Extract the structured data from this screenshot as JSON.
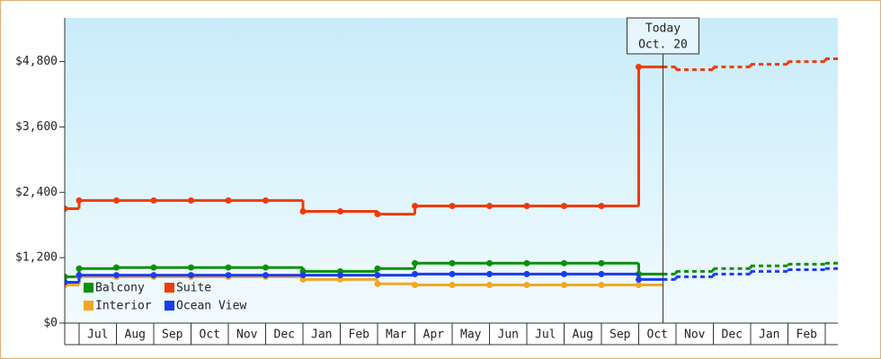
{
  "chart_data": {
    "type": "step",
    "categories": [
      null,
      "Jul",
      "Aug",
      "Sep",
      "Oct",
      "Nov",
      "Dec",
      "Jan",
      "Feb",
      "Mar",
      "Apr",
      "May",
      "Jun",
      "Jul",
      "Aug",
      "Sep",
      "Oct",
      "Nov",
      "Dec",
      "Jan",
      "Feb",
      null
    ],
    "ylim": [
      0,
      5600
    ],
    "yticks": [
      {
        "value": 0,
        "label": "$0"
      },
      {
        "value": 1200,
        "label": "$1,200"
      },
      {
        "value": 2400,
        "label": "$2,400"
      },
      {
        "value": 3600,
        "label": "$3,600"
      },
      {
        "value": 4800,
        "label": "$4,800"
      }
    ],
    "annotation": {
      "title": "Today",
      "date": "Oct. 20"
    },
    "series": [
      {
        "name": "Balcony",
        "color": "#0a8f0a",
        "values": [
          850,
          1000,
          1020,
          1020,
          1020,
          1020,
          1020,
          950,
          950,
          1000,
          1100,
          1100,
          1100,
          1100,
          1100,
          1100,
          900,
          null,
          null,
          null,
          null,
          null
        ],
        "forecast": [
          null,
          null,
          null,
          null,
          null,
          null,
          null,
          null,
          null,
          null,
          null,
          null,
          null,
          null,
          null,
          null,
          900,
          950,
          1000,
          1050,
          1080,
          1100
        ]
      },
      {
        "name": "Suite",
        "color": "#f03a0a",
        "values": [
          2100,
          2250,
          2250,
          2250,
          2250,
          2250,
          2250,
          2050,
          2050,
          2000,
          2150,
          2150,
          2150,
          2150,
          2150,
          2150,
          4700,
          null,
          null,
          null,
          null,
          null
        ],
        "forecast": [
          null,
          null,
          null,
          null,
          null,
          null,
          null,
          null,
          null,
          null,
          null,
          null,
          null,
          null,
          null,
          null,
          4700,
          4650,
          4700,
          4750,
          4800,
          4850
        ]
      },
      {
        "name": "Interior",
        "color": "#f5a623",
        "values": [
          700,
          850,
          850,
          850,
          850,
          850,
          850,
          800,
          800,
          720,
          700,
          700,
          700,
          700,
          700,
          700,
          700,
          null,
          null,
          null,
          null,
          null
        ]
      },
      {
        "name": "Ocean View",
        "color": "#1a3cf0",
        "values": [
          750,
          880,
          880,
          880,
          880,
          880,
          880,
          880,
          880,
          880,
          900,
          900,
          900,
          900,
          900,
          900,
          800,
          null,
          null,
          null,
          null,
          null
        ],
        "forecast": [
          null,
          null,
          null,
          null,
          null,
          null,
          null,
          null,
          null,
          null,
          null,
          null,
          null,
          null,
          null,
          null,
          800,
          850,
          900,
          950,
          980,
          1000
        ]
      }
    ]
  }
}
